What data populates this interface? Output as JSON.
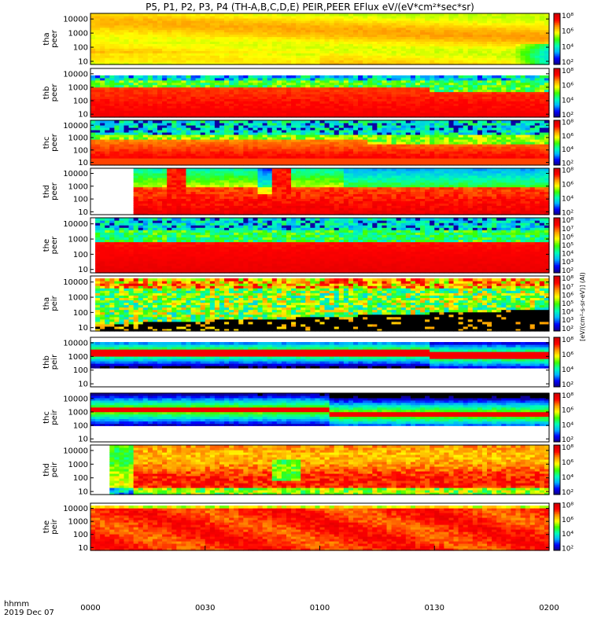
{
  "chart_data": {
    "type": "heatmap",
    "title": "P5, P1, P2, P3, P4 (TH-A,B,C,D,E) PEIR,PEER EFlux eV/(eV*cm²*sec*sr)",
    "x_axis": {
      "ticks": [
        "0000",
        "0030",
        "0100",
        "0130",
        "0200"
      ],
      "units_label": "hhmm",
      "date_label": "2019 Dec 07",
      "range": [
        "00:00",
        "02:00"
      ]
    },
    "y_axis": {
      "scale": "log",
      "ticks": [
        "10",
        "100",
        "1000",
        "10000"
      ],
      "range": [
        6,
        25000
      ]
    },
    "colorbar": {
      "scale": "log",
      "ticks": [
        "10²",
        "10³",
        "10⁴",
        "10⁵",
        "10⁶",
        "10⁷",
        "10⁸"
      ],
      "label": "[eV/(cm²-s-sr-eV)] (Al)"
    },
    "colormap": [
      "#120078",
      "#0000ff",
      "#00b4ff",
      "#00ffb4",
      "#3cff00",
      "#ffff00",
      "#ff9600",
      "#ff0000",
      "#cc0000"
    ],
    "panels": [
      {
        "probe": "tha",
        "species": "peer",
        "ylabel": [
          "tha",
          "peer"
        ],
        "profile": "tha_peer"
      },
      {
        "probe": "thb",
        "species": "peer",
        "ylabel": [
          "thb",
          "peer"
        ],
        "profile": "thb_peer"
      },
      {
        "probe": "thc",
        "species": "peer",
        "ylabel": [
          "thc",
          "peer"
        ],
        "profile": "thc_peer"
      },
      {
        "probe": "thd",
        "species": "peer",
        "ylabel": [
          "thd",
          "peer"
        ],
        "profile": "thd_peer"
      },
      {
        "probe": "the",
        "species": "peer",
        "ylabel": [
          "the",
          "peer"
        ],
        "profile": "the_peer"
      },
      {
        "probe": "tha",
        "species": "peir",
        "ylabel": [
          "tha",
          "peir"
        ],
        "profile": "tha_peir"
      },
      {
        "probe": "thb",
        "species": "peir",
        "ylabel": [
          "thb",
          "peir"
        ],
        "profile": "thb_peir"
      },
      {
        "probe": "thc",
        "species": "peir",
        "ylabel": [
          "thc",
          "peir"
        ],
        "profile": "thc_peir"
      },
      {
        "probe": "thd",
        "species": "peir",
        "ylabel": [
          "thd",
          "peir"
        ],
        "profile": "thd_peir"
      },
      {
        "probe": "the",
        "species": "peir",
        "ylabel": [
          "the",
          "peir"
        ],
        "profile": "the_peir"
      }
    ]
  }
}
